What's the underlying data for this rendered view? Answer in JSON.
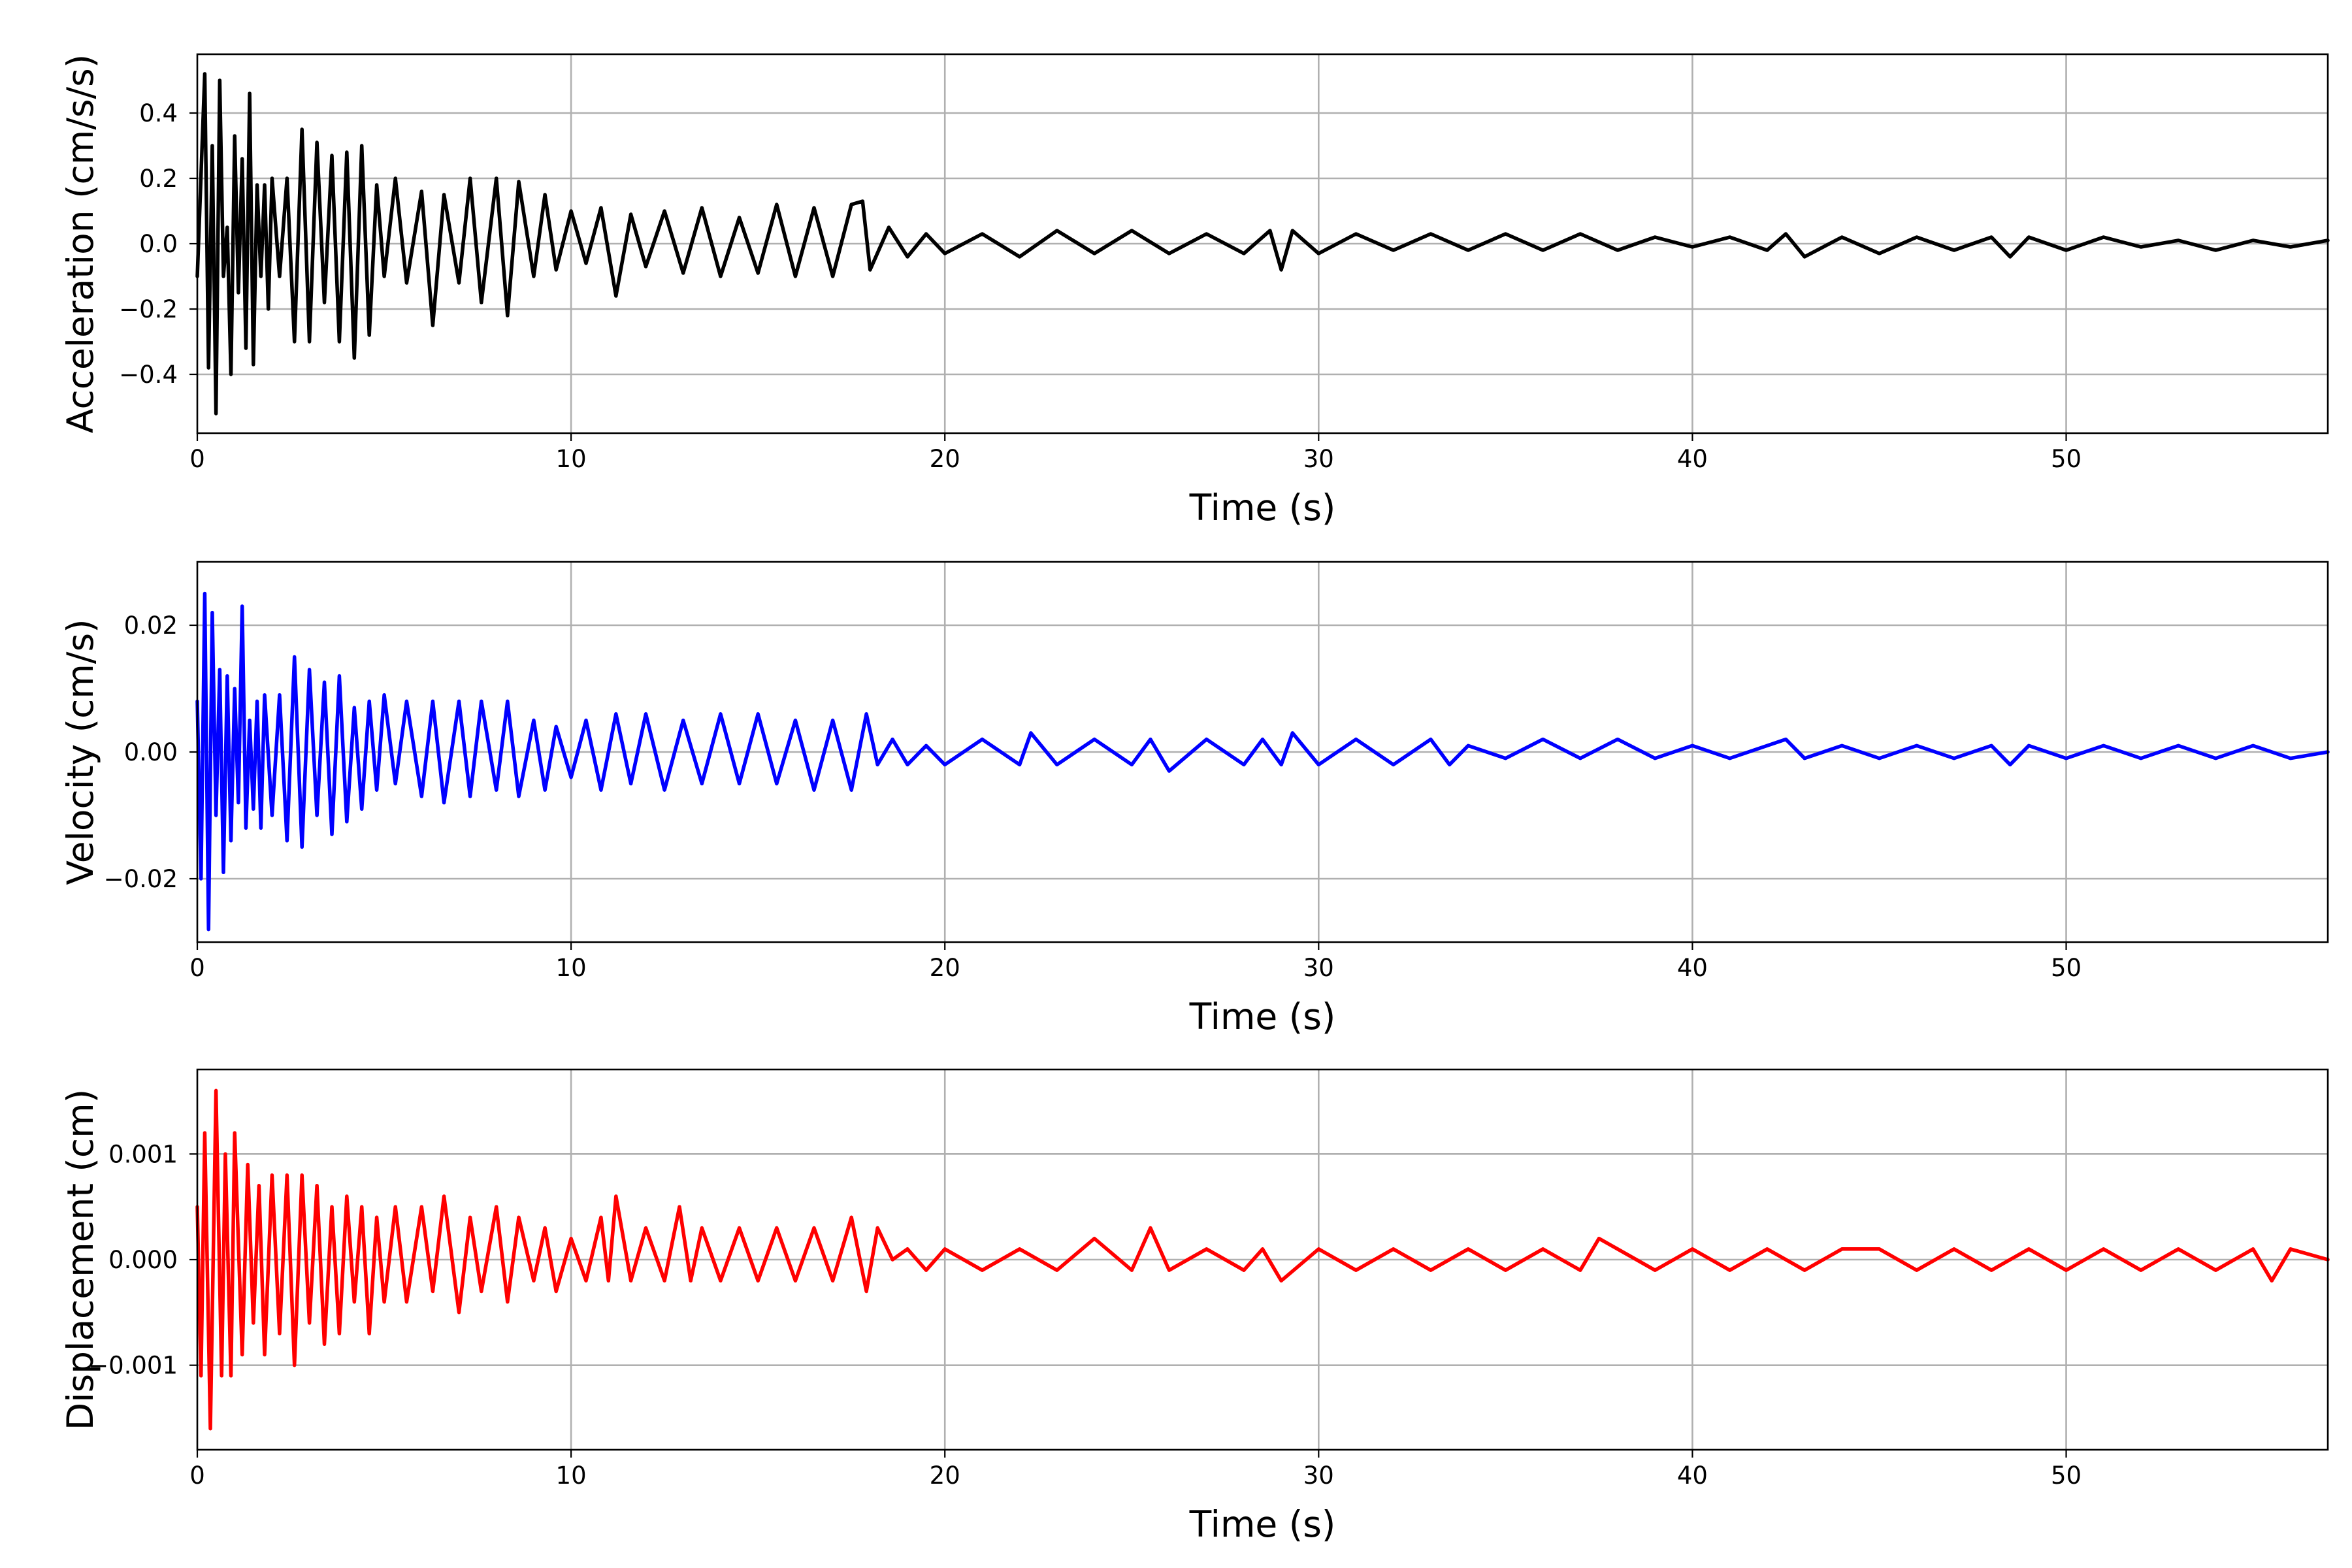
{
  "chart_data": [
    {
      "type": "line",
      "title": "",
      "xlabel": "Time (s)",
      "ylabel": "Acceleration (cm/s/s)",
      "xlim": [
        0,
        57
      ],
      "ylim": [
        -0.58,
        0.58
      ],
      "xticks": [
        0,
        10,
        20,
        30,
        40,
        50
      ],
      "xtick_labels": [
        "0",
        "10",
        "20",
        "30",
        "40",
        "50"
      ],
      "yticks": [
        -0.4,
        -0.2,
        0.0,
        0.2,
        0.4
      ],
      "ytick_labels": [
        "−0.4",
        "−0.2",
        "0.0",
        "0.2",
        "0.4"
      ],
      "grid": true,
      "color": "#000000",
      "series": [
        {
          "x": [
            0,
            0.2,
            0.3,
            0.4,
            0.5,
            0.6,
            0.7,
            0.8,
            0.9,
            1.0,
            1.1,
            1.2,
            1.3,
            1.4,
            1.5,
            1.6,
            1.7,
            1.8,
            1.9,
            2.0,
            2.2,
            2.4,
            2.6,
            2.8,
            3.0,
            3.2,
            3.4,
            3.6,
            3.8,
            4.0,
            4.2,
            4.4,
            4.6,
            4.8,
            5.0,
            5.3,
            5.6,
            6.0,
            6.3,
            6.6,
            7.0,
            7.3,
            7.6,
            8.0,
            8.3,
            8.6,
            9.0,
            9.3,
            9.6,
            10.0,
            10.4,
            10.8,
            11.2,
            11.6,
            12.0,
            12.5,
            13.0,
            13.5,
            14.0,
            14.5,
            15.0,
            15.5,
            16.0,
            16.5,
            17.0,
            17.5,
            17.8,
            18.0,
            18.5,
            19.0,
            19.5,
            20.0,
            21.0,
            22.0,
            23.0,
            24.0,
            25.0,
            26.0,
            27.0,
            28.0,
            28.7,
            29.0,
            29.3,
            30.0,
            31.0,
            32.0,
            33.0,
            34.0,
            35.0,
            36.0,
            37.0,
            38.0,
            39.0,
            40.0,
            41.0,
            42.0,
            42.5,
            43.0,
            44.0,
            45.0,
            46.0,
            47.0,
            48.0,
            48.5,
            49.0,
            50.0,
            51.0,
            52.0,
            53.0,
            54.0,
            55.0,
            56.0,
            57.0
          ],
          "y": [
            -0.1,
            0.52,
            -0.38,
            0.3,
            -0.52,
            0.5,
            -0.1,
            0.05,
            -0.4,
            0.33,
            -0.15,
            0.26,
            -0.32,
            0.46,
            -0.37,
            0.18,
            -0.1,
            0.18,
            -0.2,
            0.2,
            -0.1,
            0.2,
            -0.3,
            0.35,
            -0.3,
            0.31,
            -0.18,
            0.27,
            -0.3,
            0.28,
            -0.35,
            0.3,
            -0.28,
            0.18,
            -0.1,
            0.2,
            -0.12,
            0.16,
            -0.25,
            0.15,
            -0.12,
            0.2,
            -0.18,
            0.2,
            -0.22,
            0.19,
            -0.1,
            0.15,
            -0.08,
            0.1,
            -0.06,
            0.11,
            -0.16,
            0.09,
            -0.07,
            0.1,
            -0.09,
            0.11,
            -0.1,
            0.08,
            -0.09,
            0.12,
            -0.1,
            0.11,
            -0.1,
            0.12,
            0.13,
            -0.08,
            0.05,
            -0.04,
            0.03,
            -0.03,
            0.03,
            -0.04,
            0.04,
            -0.03,
            0.04,
            -0.03,
            0.03,
            -0.03,
            0.04,
            -0.08,
            0.04,
            -0.03,
            0.03,
            -0.02,
            0.03,
            -0.02,
            0.03,
            -0.02,
            0.03,
            -0.02,
            0.02,
            -0.01,
            0.02,
            -0.02,
            0.03,
            -0.04,
            0.02,
            -0.03,
            0.02,
            -0.02,
            0.02,
            -0.04,
            0.02,
            -0.02,
            0.02,
            -0.01,
            0.01,
            -0.02,
            0.01,
            -0.01,
            0.01
          ]
        }
      ]
    },
    {
      "type": "line",
      "title": "",
      "xlabel": "Time (s)",
      "ylabel": "Velocity (cm/s)",
      "xlim": [
        0,
        57
      ],
      "ylim": [
        -0.03,
        0.03
      ],
      "xticks": [
        0,
        10,
        20,
        30,
        40,
        50
      ],
      "xtick_labels": [
        "0",
        "10",
        "20",
        "30",
        "40",
        "50"
      ],
      "yticks": [
        -0.02,
        0.0,
        0.02
      ],
      "ytick_labels": [
        "−0.02",
        "0.00",
        "0.02"
      ],
      "grid": true,
      "color": "#0000ff",
      "series": [
        {
          "x": [
            0,
            0.1,
            0.2,
            0.3,
            0.4,
            0.5,
            0.6,
            0.7,
            0.8,
            0.9,
            1.0,
            1.1,
            1.2,
            1.3,
            1.4,
            1.5,
            1.6,
            1.7,
            1.8,
            2.0,
            2.2,
            2.4,
            2.6,
            2.8,
            3.0,
            3.2,
            3.4,
            3.6,
            3.8,
            4.0,
            4.2,
            4.4,
            4.6,
            4.8,
            5.0,
            5.3,
            5.6,
            6.0,
            6.3,
            6.6,
            7.0,
            7.3,
            7.6,
            8.0,
            8.3,
            8.6,
            9.0,
            9.3,
            9.6,
            10.0,
            10.4,
            10.8,
            11.2,
            11.6,
            12.0,
            12.5,
            13.0,
            13.5,
            14.0,
            14.5,
            15.0,
            15.5,
            16.0,
            16.5,
            17.0,
            17.5,
            17.9,
            18.2,
            18.6,
            19.0,
            19.5,
            20.0,
            21.0,
            22.0,
            22.3,
            23.0,
            24.0,
            25.0,
            25.5,
            26.0,
            27.0,
            28.0,
            28.5,
            29.0,
            29.3,
            30.0,
            31.0,
            32.0,
            33.0,
            33.5,
            34.0,
            35.0,
            36.0,
            37.0,
            38.0,
            39.0,
            40.0,
            41.0,
            42.0,
            42.5,
            43.0,
            44.0,
            45.0,
            46.0,
            47.0,
            48.0,
            48.5,
            49.0,
            50.0,
            51.0,
            52.0,
            53.0,
            54.0,
            55.0,
            56.0,
            57.0
          ],
          "y": [
            0.008,
            -0.02,
            0.025,
            -0.028,
            0.022,
            -0.01,
            0.013,
            -0.019,
            0.012,
            -0.014,
            0.01,
            -0.008,
            0.023,
            -0.012,
            0.005,
            -0.009,
            0.008,
            -0.012,
            0.009,
            -0.01,
            0.009,
            -0.014,
            0.015,
            -0.015,
            0.013,
            -0.01,
            0.011,
            -0.013,
            0.012,
            -0.011,
            0.007,
            -0.009,
            0.008,
            -0.006,
            0.009,
            -0.005,
            0.008,
            -0.007,
            0.008,
            -0.008,
            0.008,
            -0.007,
            0.008,
            -0.006,
            0.008,
            -0.007,
            0.005,
            -0.006,
            0.004,
            -0.004,
            0.005,
            -0.006,
            0.006,
            -0.005,
            0.006,
            -0.006,
            0.005,
            -0.005,
            0.006,
            -0.005,
            0.006,
            -0.005,
            0.005,
            -0.006,
            0.005,
            -0.006,
            0.006,
            -0.002,
            0.002,
            -0.002,
            0.001,
            -0.002,
            0.002,
            -0.002,
            0.003,
            -0.002,
            0.002,
            -0.002,
            0.002,
            -0.003,
            0.002,
            -0.002,
            0.002,
            -0.002,
            0.003,
            -0.002,
            0.002,
            -0.002,
            0.002,
            -0.002,
            0.001,
            -0.001,
            0.002,
            -0.001,
            0.002,
            -0.001,
            0.001,
            -0.001,
            0.001,
            0.002,
            -0.001,
            0.001,
            -0.001,
            0.001,
            -0.001,
            0.001,
            -0.002,
            0.001,
            -0.001,
            0.001,
            -0.001,
            0.001,
            -0.001,
            0.001,
            -0.001,
            0.0
          ]
        }
      ]
    },
    {
      "type": "line",
      "title": "",
      "xlabel": "Time (s)",
      "ylabel": "Displacement (cm)",
      "xlim": [
        0,
        57
      ],
      "ylim": [
        -0.0018,
        0.0018
      ],
      "xticks": [
        0,
        10,
        20,
        30,
        40,
        50
      ],
      "xtick_labels": [
        "0",
        "10",
        "20",
        "30",
        "40",
        "50"
      ],
      "yticks": [
        -0.001,
        0.0,
        0.001
      ],
      "ytick_labels": [
        "−0.001",
        "0.000",
        "0.001"
      ],
      "grid": true,
      "color": "#ff0000",
      "series": [
        {
          "x": [
            0,
            0.1,
            0.2,
            0.35,
            0.5,
            0.65,
            0.75,
            0.9,
            1.0,
            1.2,
            1.35,
            1.5,
            1.65,
            1.8,
            2.0,
            2.2,
            2.4,
            2.6,
            2.8,
            3.0,
            3.2,
            3.4,
            3.6,
            3.8,
            4.0,
            4.2,
            4.4,
            4.6,
            4.8,
            5.0,
            5.3,
            5.6,
            6.0,
            6.3,
            6.6,
            7.0,
            7.3,
            7.6,
            8.0,
            8.3,
            8.6,
            9.0,
            9.3,
            9.6,
            10.0,
            10.4,
            10.8,
            11.0,
            11.2,
            11.6,
            12.0,
            12.5,
            12.9,
            13.2,
            13.5,
            14.0,
            14.5,
            15.0,
            15.5,
            16.0,
            16.5,
            17.0,
            17.5,
            17.9,
            18.2,
            18.6,
            19.0,
            19.5,
            20.0,
            21.0,
            22.0,
            23.0,
            24.0,
            25.0,
            25.5,
            26.0,
            27.0,
            28.0,
            28.5,
            29.0,
            30.0,
            31.0,
            32.0,
            33.0,
            34.0,
            35.0,
            36.0,
            37.0,
            37.5,
            38.0,
            39.0,
            40.0,
            41.0,
            42.0,
            43.0,
            44.0,
            45.0,
            46.0,
            47.0,
            48.0,
            49.0,
            50.0,
            51.0,
            52.0,
            53.0,
            54.0,
            55.0,
            55.5,
            56.0,
            57.0
          ],
          "y": [
            0.0005,
            -0.0011,
            0.0012,
            -0.0016,
            0.0016,
            -0.0011,
            0.001,
            -0.0011,
            0.0012,
            -0.0009,
            0.0009,
            -0.0006,
            0.0007,
            -0.0009,
            0.0008,
            -0.0007,
            0.0008,
            -0.001,
            0.0008,
            -0.0006,
            0.0007,
            -0.0008,
            0.0005,
            -0.0007,
            0.0006,
            -0.0004,
            0.0005,
            -0.0007,
            0.0004,
            -0.0004,
            0.0005,
            -0.0004,
            0.0005,
            -0.0003,
            0.0006,
            -0.0005,
            0.0004,
            -0.0003,
            0.0005,
            -0.0004,
            0.0004,
            -0.0002,
            0.0003,
            -0.0003,
            0.0002,
            -0.0002,
            0.0004,
            -0.0002,
            0.0006,
            -0.0002,
            0.0003,
            -0.0002,
            0.0005,
            -0.0002,
            0.0003,
            -0.0002,
            0.0003,
            -0.0002,
            0.0003,
            -0.0002,
            0.0003,
            -0.0002,
            0.0004,
            -0.0003,
            0.0003,
            0.0,
            0.0001,
            -0.0001,
            0.0001,
            -0.0001,
            0.0001,
            -0.0001,
            0.0002,
            -0.0001,
            0.0003,
            -0.0001,
            0.0001,
            -0.0001,
            0.0001,
            -0.0002,
            0.0001,
            -0.0001,
            0.0001,
            -0.0001,
            0.0001,
            -0.0001,
            0.0001,
            -0.0001,
            0.0002,
            0.0001,
            -0.0001,
            0.0001,
            -0.0001,
            0.0001,
            -0.0001,
            0.0001,
            0.0001,
            -0.0001,
            0.0001,
            -0.0001,
            0.0001,
            -0.0001,
            0.0001,
            -0.0001,
            0.0001,
            -0.0001,
            0.0001,
            -0.0002,
            0.0001,
            0.0
          ]
        }
      ]
    }
  ]
}
